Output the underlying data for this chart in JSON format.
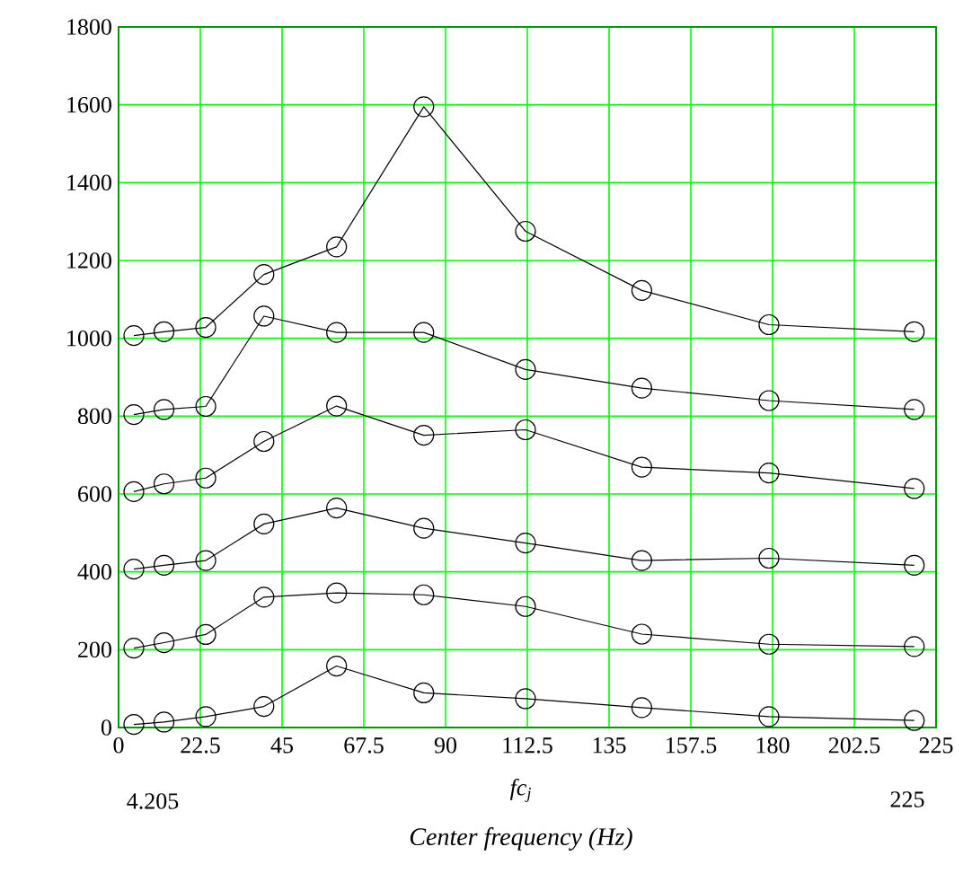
{
  "chart_data": {
    "type": "line",
    "xlabel": "Center frequency (Hz)",
    "annotations": [
      "fc$_{j}$",
      "4.205",
      "225"
    ],
    "x": [
      4.2,
      12.5,
      24,
      40,
      60,
      84,
      112,
      144,
      179,
      219
    ],
    "series": [
      {
        "color": "#000000",
        "values": [
          8,
          14,
          28,
          54,
          158,
          89,
          74,
          51,
          28,
          18
        ]
      },
      {
        "color": "#000000",
        "values": [
          204,
          218,
          239,
          335,
          346,
          341,
          311,
          240,
          214,
          208
        ]
      },
      {
        "color": "#000000",
        "values": [
          407,
          417,
          429,
          523,
          564,
          512,
          474,
          429,
          435,
          417
        ]
      },
      {
        "color": "#000000",
        "values": [
          606,
          626,
          641,
          735,
          826,
          751,
          765,
          669,
          654,
          614
        ]
      },
      {
        "color": "#000000",
        "values": [
          804,
          817,
          825,
          1057,
          1015,
          1015,
          920,
          872,
          840,
          817
        ]
      },
      {
        "color": "#000000",
        "values": [
          1007,
          1017,
          1028,
          1164,
          1235,
          1595,
          1275,
          1123,
          1035,
          1017
        ]
      }
    ],
    "xlim": [
      0,
      225
    ],
    "ylim": [
      0,
      1800
    ],
    "xticks": [
      0,
      22.5,
      45,
      67.5,
      90,
      112.5,
      135,
      157.5,
      180,
      202.5,
      225
    ],
    "yticks": [
      0,
      200,
      400,
      600,
      800,
      1000,
      1200,
      1400,
      1600,
      1800
    ],
    "grid": true,
    "marker": "circle",
    "line_style": "solid"
  }
}
